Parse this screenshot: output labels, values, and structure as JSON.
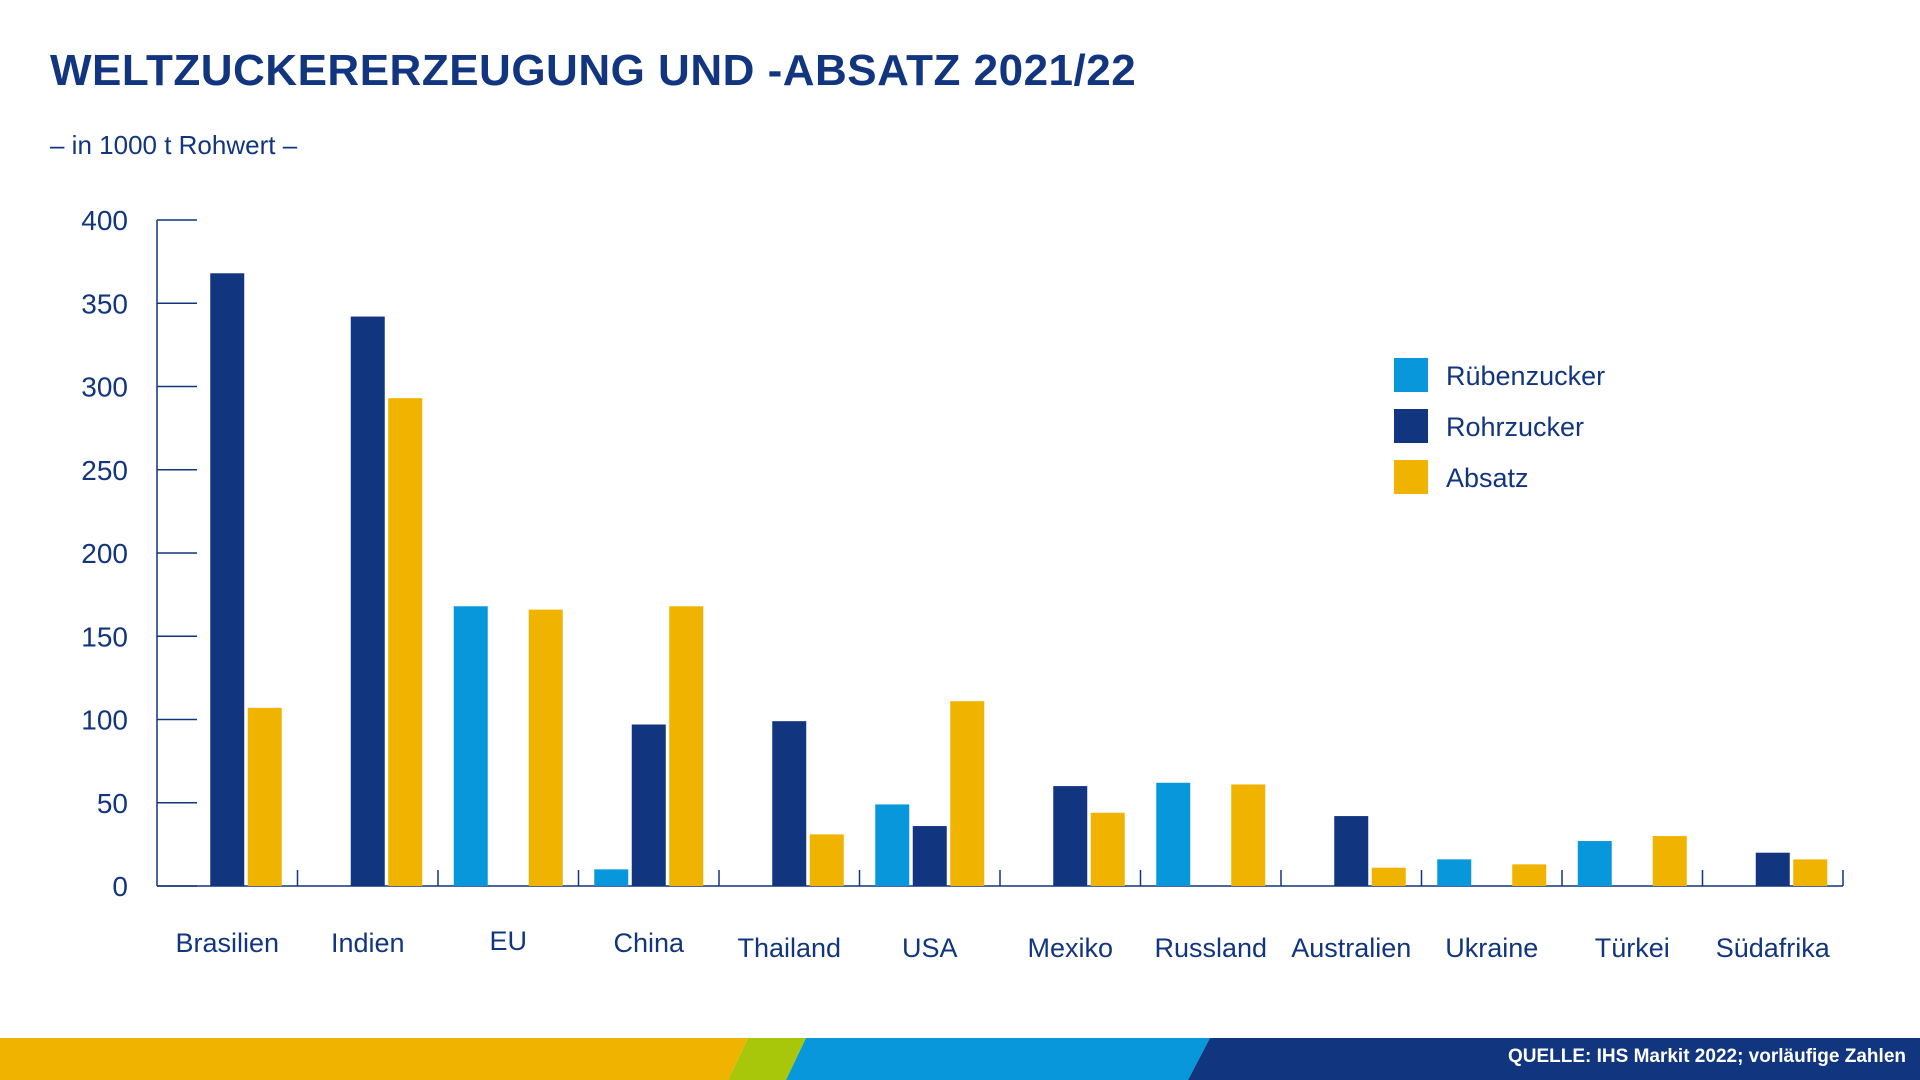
{
  "chart_data": {
    "type": "bar",
    "title": "WELTZUCKERERZEUGUNG UND -ABSATZ 2021/22",
    "subtitle": "– in 1000 t Rohwert –",
    "categories": [
      "Brasilien",
      "Indien",
      "EU",
      "China",
      "Thailand",
      "USA",
      "Mexiko",
      "Russland",
      "Australien",
      "Ukraine",
      "Türkei",
      "Südafrika"
    ],
    "series": [
      {
        "name": "Rübenzucker",
        "color": "#0897db",
        "values": [
          0,
          0,
          168,
          10,
          0,
          49,
          0,
          62,
          0,
          16,
          27,
          0
        ]
      },
      {
        "name": "Rohrzucker",
        "color": "#12357f",
        "values": [
          368,
          342,
          0,
          97,
          99,
          36,
          60,
          0,
          42,
          0,
          0,
          20
        ]
      },
      {
        "name": "Absatz",
        "color": "#f0b400",
        "values": [
          107,
          293,
          166,
          168,
          31,
          111,
          44,
          61,
          11,
          13,
          30,
          16
        ]
      }
    ],
    "ylim": [
      0,
      400
    ],
    "yticks": [
      0,
      50,
      100,
      150,
      200,
      250,
      300,
      350,
      400
    ],
    "ylabel": "",
    "xlabel": "",
    "legend_position": "top-right",
    "grid": false
  },
  "footer": {
    "source": "QUELLE: IHS Markit 2022; vorläufige Zahlen",
    "colors": [
      "#f0b400",
      "#a8c70a",
      "#0897db",
      "#12357f"
    ]
  }
}
